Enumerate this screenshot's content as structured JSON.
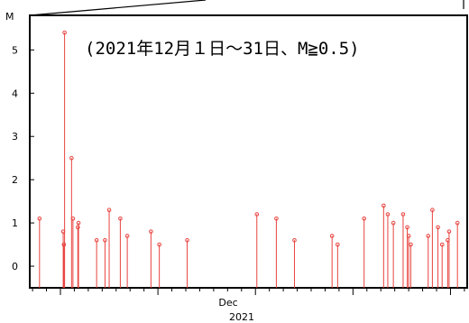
{
  "chart_data": {
    "type": "stem",
    "title": "(2021年12月１日～31日、M≧0.5)",
    "ylabel": "M",
    "xlabel": "Dec",
    "xlabel_year": "2021",
    "x_unit": "day of December 2021",
    "xlim": [
      -0.2,
      31.2
    ],
    "ylim": [
      -0.5,
      5.8
    ],
    "yticks": [
      0,
      1,
      2,
      3,
      4,
      5
    ],
    "grid": false,
    "colors": {
      "stem": "#e8433f",
      "frame": "#000000"
    },
    "points": [
      {
        "x": 0.5,
        "y": 1.1
      },
      {
        "x": 2.3,
        "y": 5.4
      },
      {
        "x": 2.2,
        "y": 0.8
      },
      {
        "x": 2.25,
        "y": 0.5
      },
      {
        "x": 2.8,
        "y": 2.5
      },
      {
        "x": 2.9,
        "y": 1.1
      },
      {
        "x": 3.25,
        "y": 0.9
      },
      {
        "x": 3.3,
        "y": 1.0
      },
      {
        "x": 4.6,
        "y": 0.6
      },
      {
        "x": 5.2,
        "y": 0.6
      },
      {
        "x": 5.5,
        "y": 1.3
      },
      {
        "x": 6.3,
        "y": 1.1
      },
      {
        "x": 6.8,
        "y": 0.7
      },
      {
        "x": 8.5,
        "y": 0.8
      },
      {
        "x": 9.1,
        "y": 0.5
      },
      {
        "x": 11.1,
        "y": 0.6
      },
      {
        "x": 16.1,
        "y": 1.2
      },
      {
        "x": 17.5,
        "y": 1.1
      },
      {
        "x": 18.8,
        "y": 0.6
      },
      {
        "x": 21.5,
        "y": 0.7
      },
      {
        "x": 21.9,
        "y": 0.5
      },
      {
        "x": 23.8,
        "y": 1.1
      },
      {
        "x": 25.2,
        "y": 1.4
      },
      {
        "x": 25.5,
        "y": 1.2
      },
      {
        "x": 25.9,
        "y": 1.0
      },
      {
        "x": 26.6,
        "y": 1.2
      },
      {
        "x": 26.9,
        "y": 0.9
      },
      {
        "x": 27.0,
        "y": 0.7
      },
      {
        "x": 27.15,
        "y": 0.5
      },
      {
        "x": 28.4,
        "y": 0.7
      },
      {
        "x": 28.7,
        "y": 1.3
      },
      {
        "x": 29.1,
        "y": 0.9
      },
      {
        "x": 29.4,
        "y": 0.5
      },
      {
        "x": 29.8,
        "y": 0.6
      },
      {
        "x": 29.9,
        "y": 0.8
      },
      {
        "x": 30.5,
        "y": 1.0
      }
    ]
  }
}
